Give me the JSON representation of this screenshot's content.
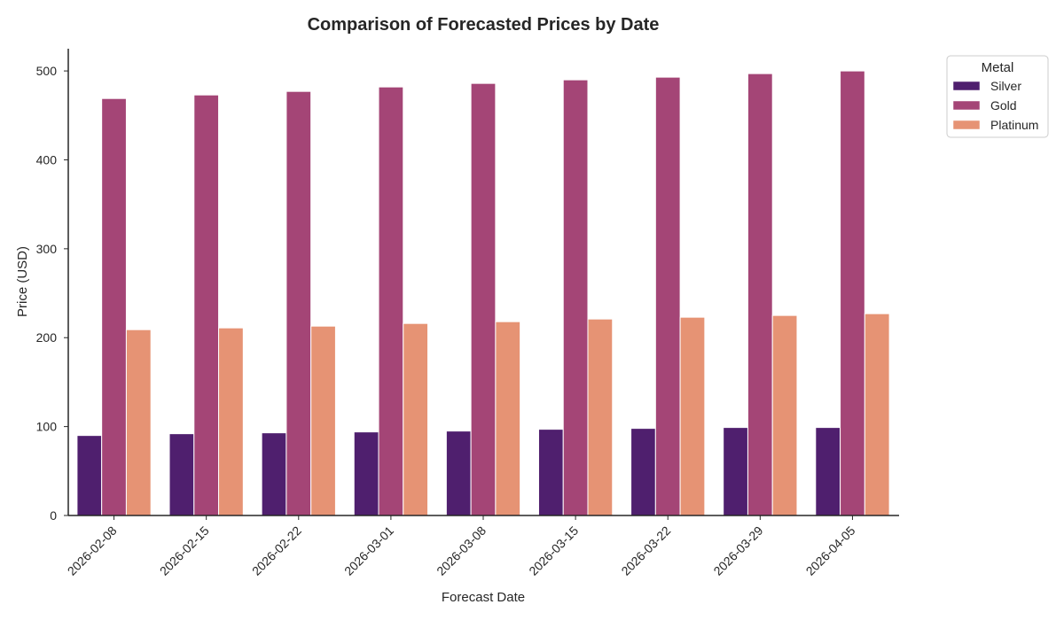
{
  "chart_data": {
    "type": "bar",
    "title": "Comparison of Forecasted Prices by Date",
    "xlabel": "Forecast Date",
    "ylabel": "Price (USD)",
    "ylim": [
      0,
      525
    ],
    "yticks": [
      0,
      100,
      200,
      300,
      400,
      500
    ],
    "grid": false,
    "legend": {
      "title": "Metal",
      "position": "top-right, outside plot"
    },
    "categories": [
      "2026-02-08",
      "2026-02-15",
      "2026-02-22",
      "2026-03-01",
      "2026-03-08",
      "2026-03-15",
      "2026-03-22",
      "2026-03-29",
      "2026-04-05"
    ],
    "series": [
      {
        "name": "Silver",
        "color": "#4f1f6e",
        "values": [
          90,
          92,
          93,
          94,
          95,
          97,
          98,
          99,
          99
        ]
      },
      {
        "name": "Gold",
        "color": "#a44576",
        "values": [
          469,
          473,
          477,
          482,
          486,
          490,
          493,
          497,
          500
        ]
      },
      {
        "name": "Platinum",
        "color": "#e69374",
        "values": [
          209,
          211,
          213,
          216,
          218,
          221,
          223,
          225,
          227
        ]
      }
    ]
  }
}
